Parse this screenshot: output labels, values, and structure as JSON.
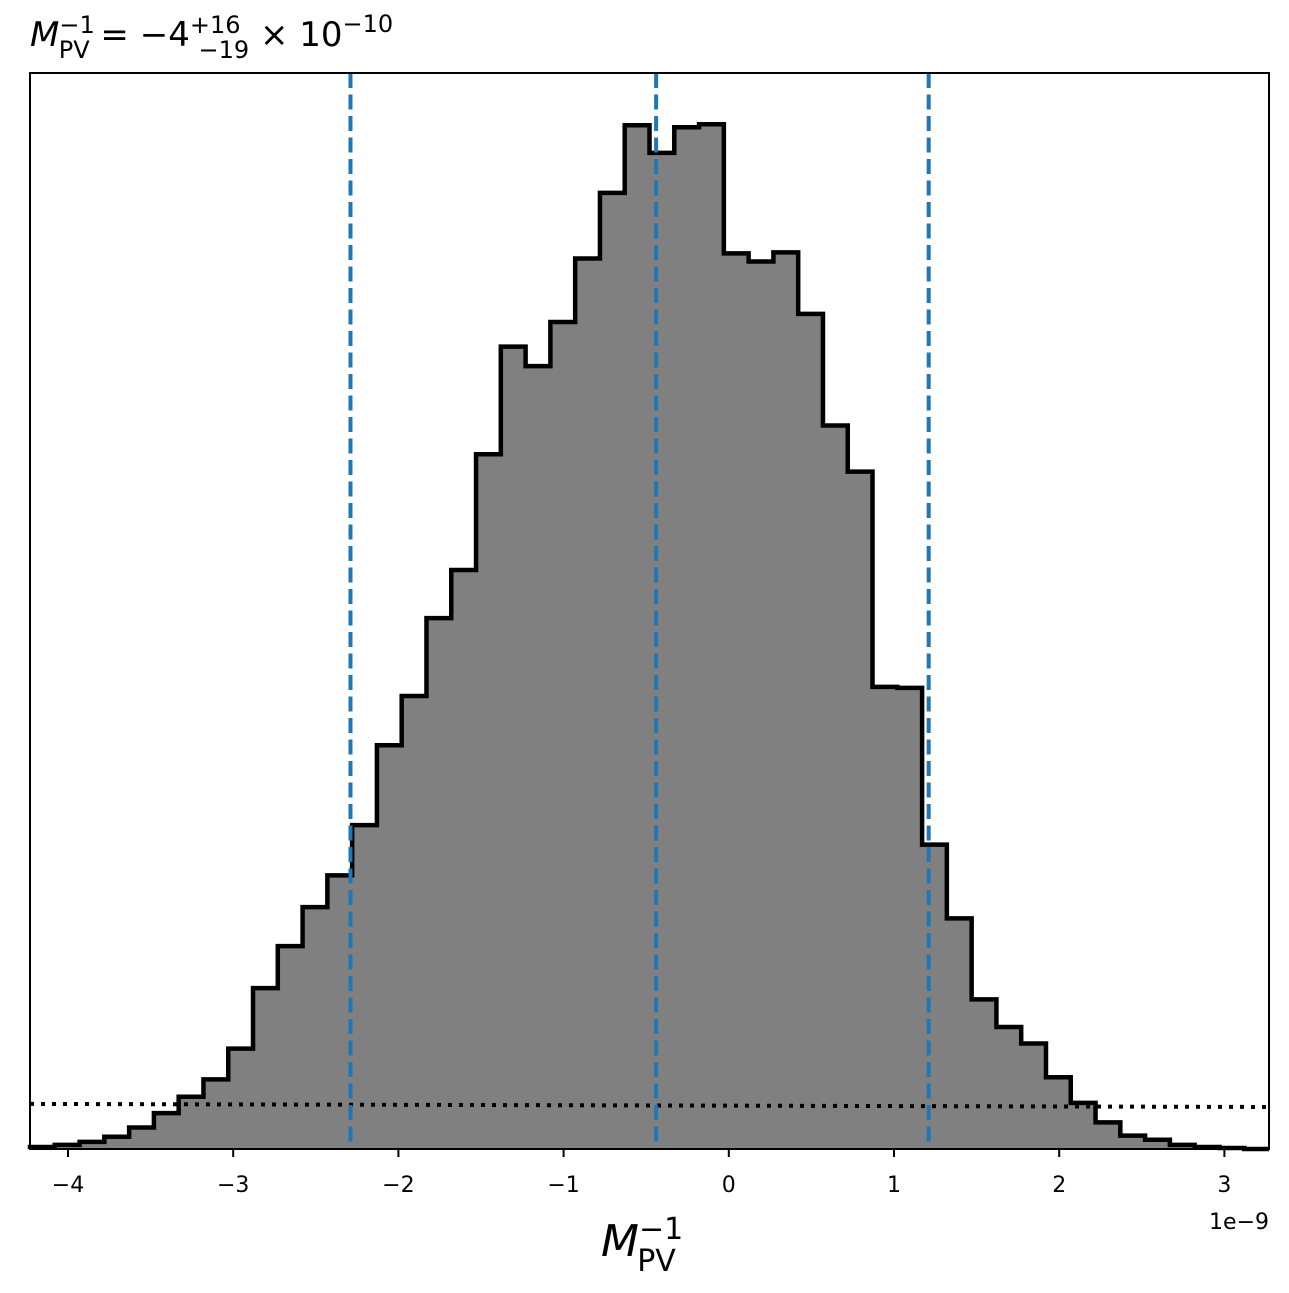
{
  "chart_data": {
    "type": "histogram",
    "title": {
      "lhs_base": "M",
      "lhs_sup": "−1",
      "lhs_sub": "PV",
      "equals": " = ",
      "value": "−4",
      "plus_err": "+16",
      "minus_err": "−19",
      "times": " × 10",
      "exponent": "−10"
    },
    "xlabel": {
      "base": "M",
      "sup": "−1",
      "sub": "PV"
    },
    "x_offset_text": "1e−9",
    "xlim": [
      -4.23,
      3.27
    ],
    "ylim": [
      0,
      1.05
    ],
    "xticks": [
      -4,
      -3,
      -2,
      -1,
      0,
      1,
      2,
      3
    ],
    "xtick_labels": [
      "−4",
      "−3",
      "−2",
      "−1",
      "0",
      "1",
      "2",
      "3"
    ],
    "y_axis_labels_shown": false,
    "bin_edges": [
      -4.23,
      -4.08,
      -3.93,
      -3.78,
      -3.63,
      -3.48,
      -3.33,
      -3.18,
      -3.03,
      -2.88,
      -2.73,
      -2.58,
      -2.43,
      -2.28,
      -2.13,
      -1.98,
      -1.83,
      -1.68,
      -1.53,
      -1.38,
      -1.23,
      -1.08,
      -0.93,
      -0.78,
      -0.63,
      -0.48,
      -0.33,
      -0.18,
      -0.03,
      0.12,
      0.27,
      0.42,
      0.57,
      0.72,
      0.87,
      1.02,
      1.17,
      1.32,
      1.47,
      1.62,
      1.77,
      1.92,
      2.07,
      2.22,
      2.37,
      2.52,
      2.67,
      2.82,
      2.97,
      3.12,
      3.27
    ],
    "counts": [
      0.002,
      0.004,
      0.007,
      0.012,
      0.021,
      0.035,
      0.051,
      0.068,
      0.098,
      0.157,
      0.198,
      0.236,
      0.267,
      0.316,
      0.394,
      0.442,
      0.518,
      0.565,
      0.678,
      0.783,
      0.764,
      0.807,
      0.869,
      0.933,
      0.999,
      0.972,
      0.997,
      1.0,
      0.874,
      0.866,
      0.875,
      0.815,
      0.706,
      0.661,
      0.451,
      0.45,
      0.297,
      0.225,
      0.146,
      0.119,
      0.103,
      0.07,
      0.045,
      0.026,
      0.013,
      0.009,
      0.004,
      0.002,
      0.001,
      0.0
    ],
    "hist_fill": "#808080",
    "hist_edge": "#000000",
    "vlines": {
      "values": [
        -2.29,
        -0.44,
        1.21
      ],
      "color": "#1f77b4",
      "style": "dashed"
    },
    "prior_line": {
      "y_start": 0.044,
      "y_end": 0.041,
      "color": "#000000",
      "style": "dotted"
    }
  }
}
